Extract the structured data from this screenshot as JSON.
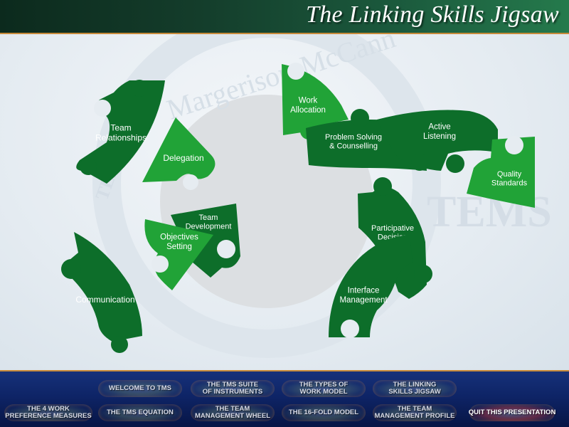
{
  "header": {
    "title": "The Linking Skills Jigsaw"
  },
  "watermark": {
    "text_arc": "Margerison-McCann",
    "text_right": "TEMS",
    "text_left": "TEAM"
  },
  "pieces": {
    "team_relationships": "Team Relationships",
    "delegation": "Delegation",
    "team_development": "Team Development",
    "objectives_setting": "Objectives Setting",
    "communication": "Communication",
    "work_allocation": "Work Allocation",
    "problem_solving": "Problem Solving & Counselling",
    "active_listening": "Active Listening",
    "quality_standards": "Quality Standards",
    "participative_decision": "Participative Decision",
    "interface_management": "Interface Management"
  },
  "nav": {
    "welcome": "WELCOME TO TMS",
    "suite": "THE TMS SUITE OF INSTRUMENTS",
    "types": "THE TYPES OF WORK MODEL",
    "linking": "THE LINKING SKILLS JIGSAW",
    "work_pref": "THE 4 WORK PREFERENCE MEASURES",
    "equation": "THE TMS EQUATION",
    "wheel": "THE TEAM MANAGEMENT WHEEL",
    "fold16": "THE 16-FOLD MODEL",
    "profile": "THE TEAM MANAGEMENT PROFILE",
    "quit": "QUIT THIS PRESENTATION"
  },
  "colors": {
    "dark_green": "#0d6e2a",
    "light_green": "#21a337",
    "header_bg": "#143d2b",
    "footer_bg": "#0e2466",
    "accent": "#c78a3a"
  }
}
